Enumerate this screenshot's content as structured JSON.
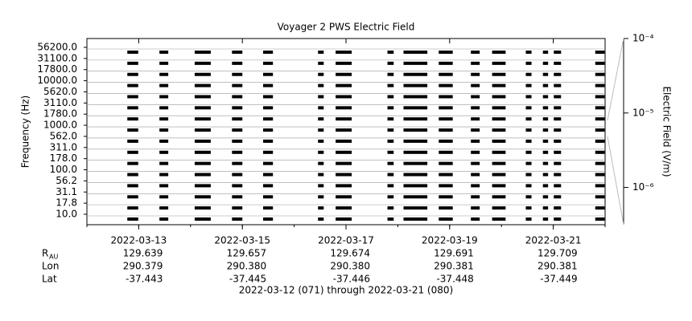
{
  "chart_data": {
    "type": "timeline",
    "title": "Voyager 2 PWS Electric Field",
    "y_label": "Frequency (Hz)",
    "y2_label": "Electric Field (V/m)",
    "categories": [
      "10.0",
      "17.8",
      "31.1",
      "56.2",
      "100.0",
      "178.0",
      "311.0",
      "562.0",
      "1000.0",
      "1780.0",
      "3110.0",
      "5620.0",
      "10000.0",
      "17800.0",
      "31100.0",
      "56200.0"
    ],
    "color": "#000000",
    "grid": true,
    "xlim": [
      71,
      81
    ],
    "xticks": [
      {
        "value": 72,
        "label": "2022-03-13"
      },
      {
        "value": 74,
        "label": "2022-03-15"
      },
      {
        "value": 76,
        "label": "2022-03-17"
      },
      {
        "value": 78,
        "label": "2022-03-19"
      },
      {
        "value": 80,
        "label": "2022-03-21"
      }
    ],
    "segments": [
      [
        71.78,
        71.99
      ],
      [
        72.4,
        72.57
      ],
      [
        73.08,
        73.39
      ],
      [
        73.8,
        74.0
      ],
      [
        74.4,
        74.59
      ],
      [
        75.46,
        75.57
      ],
      [
        75.8,
        76.11
      ],
      [
        76.8,
        76.92
      ],
      [
        77.11,
        77.57
      ],
      [
        77.79,
        78.06
      ],
      [
        78.41,
        78.58
      ],
      [
        78.82,
        79.08
      ],
      [
        79.47,
        79.58
      ],
      [
        79.8,
        79.9
      ],
      [
        80.01,
        80.15
      ],
      [
        80.81,
        80.99
      ]
    ],
    "y2lim": [
      3.16e-07,
      0.0001
    ],
    "y2log": true,
    "y2ticks": [
      {
        "value": 0.0001,
        "label": "10⁻⁴"
      },
      {
        "value": 1e-05,
        "label": "10⁻⁵"
      },
      {
        "value": 1e-06,
        "label": "10⁻⁶"
      }
    ],
    "ephemeris": [
      {
        "name": "R",
        "subscript": "AU",
        "values": [
          "129.639",
          "129.657",
          "129.674",
          "129.691",
          "129.709"
        ]
      },
      {
        "name": "Lon",
        "values": [
          "290.379",
          "290.380",
          "290.380",
          "290.381",
          "290.381"
        ]
      },
      {
        "name": "Lat",
        "values": [
          "-37.443",
          "-37.445",
          "-37.446",
          "-37.448",
          "-37.449"
        ]
      }
    ],
    "footer": "2022-03-12 (071) through 2022-03-21 (080)"
  }
}
